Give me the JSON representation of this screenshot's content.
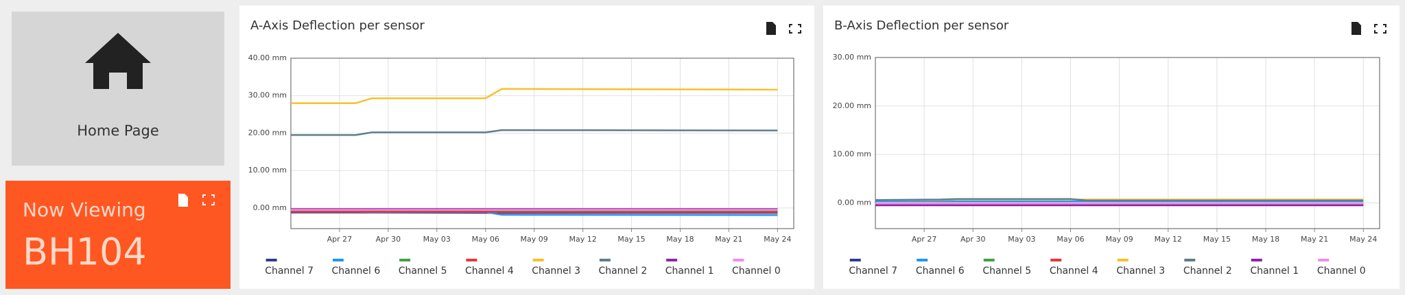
{
  "home": {
    "label": "Home Page"
  },
  "now_viewing": {
    "label": "Now Viewing",
    "value": "BH104"
  },
  "chart_data": [
    {
      "type": "line",
      "title": "A-Axis Deflection per sensor",
      "x": [
        "Apr 24",
        "Apr 28",
        "Apr 29",
        "May 06",
        "May 07",
        "May 24"
      ],
      "xlim": [
        "Apr 24",
        "May 25"
      ],
      "xticks": [
        "Apr 27",
        "Apr 30",
        "May 03",
        "May 06",
        "May 09",
        "May 12",
        "May 15",
        "May 18",
        "May 21",
        "May 24"
      ],
      "ylim": [
        -5.5,
        40
      ],
      "yticks": [
        {
          "value": 0,
          "label": "0.00 mm"
        },
        {
          "value": 10,
          "label": "10.00 mm"
        },
        {
          "value": 20,
          "label": "20.00 mm"
        },
        {
          "value": 30,
          "label": "30.00 mm"
        },
        {
          "value": 40,
          "label": "40.00 mm"
        }
      ],
      "grid": true,
      "legend": "bottom",
      "series": [
        {
          "name": "Channel 7",
          "color": "#2e3b8e",
          "values": [
            -1.2,
            -1.2,
            -1.2,
            -1.3,
            -1.3,
            -1.3
          ]
        },
        {
          "name": "Channel 6",
          "color": "#2196f3",
          "values": [
            -1.0,
            -1.0,
            -1.1,
            -1.1,
            -1.8,
            -1.9
          ]
        },
        {
          "name": "Channel 5",
          "color": "#43a047",
          "values": [
            -0.8,
            -0.8,
            -0.8,
            -0.9,
            -0.9,
            -0.9
          ]
        },
        {
          "name": "Channel 4",
          "color": "#e53935",
          "values": [
            -1.0,
            -1.0,
            -1.0,
            -1.0,
            -1.1,
            -1.1
          ]
        },
        {
          "name": "Channel 3",
          "color": "#f9c02d",
          "values": [
            28.0,
            28.0,
            29.3,
            29.3,
            31.8,
            31.6
          ]
        },
        {
          "name": "Channel 2",
          "color": "#607d8b",
          "values": [
            19.5,
            19.5,
            20.2,
            20.2,
            20.8,
            20.7
          ]
        },
        {
          "name": "Channel 1",
          "color": "#8e24aa",
          "values": [
            -0.3,
            -0.3,
            -0.3,
            -0.3,
            -0.3,
            -0.3
          ]
        },
        {
          "name": "Channel 0",
          "color": "#f08ee6",
          "values": [
            -0.5,
            -0.5,
            -0.5,
            -0.5,
            -0.5,
            -0.5
          ]
        }
      ]
    },
    {
      "type": "line",
      "title": "B-Axis Deflection per sensor",
      "x": [
        "Apr 24",
        "Apr 28",
        "Apr 29",
        "May 06",
        "May 07",
        "May 24"
      ],
      "xlim": [
        "Apr 24",
        "May 25"
      ],
      "xticks": [
        "Apr 27",
        "Apr 30",
        "May 03",
        "May 06",
        "May 09",
        "May 12",
        "May 15",
        "May 18",
        "May 21",
        "May 24"
      ],
      "ylim": [
        -5.3,
        30
      ],
      "yticks": [
        {
          "value": 0,
          "label": "0.00 mm"
        },
        {
          "value": 10,
          "label": "10.00 mm"
        },
        {
          "value": 20,
          "label": "20.00 mm"
        },
        {
          "value": 30,
          "label": "30.00 mm"
        }
      ],
      "grid": true,
      "legend": "bottom",
      "series": [
        {
          "name": "Channel 7",
          "color": "#2e3b8e",
          "values": [
            -0.4,
            -0.4,
            -0.4,
            -0.4,
            -0.4,
            -0.4
          ]
        },
        {
          "name": "Channel 6",
          "color": "#2196f3",
          "values": [
            0.3,
            0.3,
            0.3,
            0.3,
            0.3,
            0.3
          ]
        },
        {
          "name": "Channel 5",
          "color": "#43a047",
          "values": [
            -0.2,
            -0.2,
            -0.2,
            -0.2,
            -0.2,
            -0.2
          ]
        },
        {
          "name": "Channel 4",
          "color": "#e53935",
          "values": [
            -0.3,
            -0.3,
            -0.3,
            -0.3,
            -0.3,
            -0.3
          ]
        },
        {
          "name": "Channel 3",
          "color": "#f9c02d",
          "values": [
            0.6,
            0.6,
            0.7,
            0.7,
            0.7,
            0.7
          ]
        },
        {
          "name": "Channel 2",
          "color": "#607d8b",
          "values": [
            0.6,
            0.7,
            0.8,
            0.8,
            0.5,
            0.5
          ]
        },
        {
          "name": "Channel 1",
          "color": "#8e24aa",
          "values": [
            -0.5,
            -0.5,
            -0.5,
            -0.5,
            -0.5,
            -0.5
          ]
        },
        {
          "name": "Channel 0",
          "color": "#f08ee6",
          "values": [
            -0.1,
            -0.1,
            -0.1,
            -0.1,
            -0.1,
            -0.1
          ]
        }
      ]
    }
  ]
}
